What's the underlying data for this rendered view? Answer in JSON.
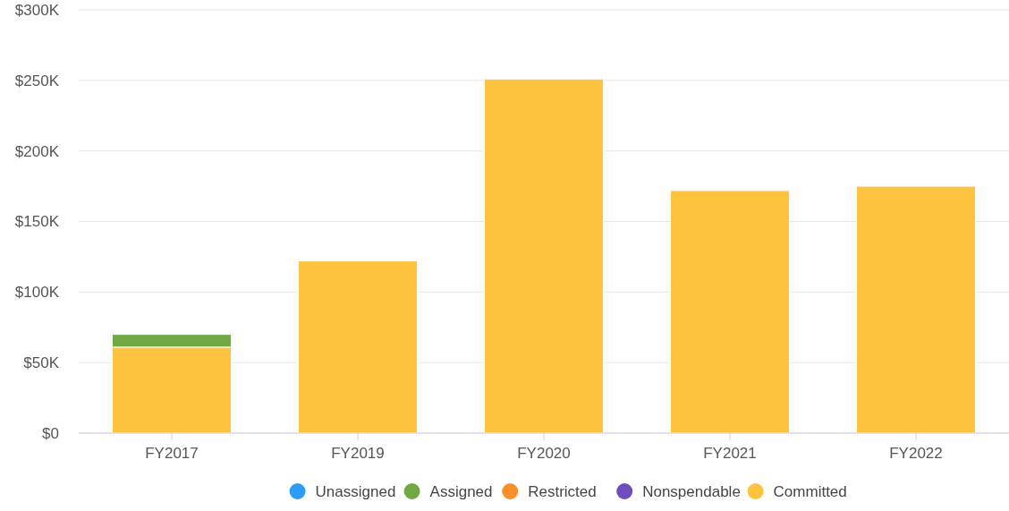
{
  "chart_data": {
    "type": "bar",
    "stacked": true,
    "categories": [
      "FY2017",
      "FY2019",
      "FY2020",
      "FY2021",
      "FY2022"
    ],
    "series": [
      {
        "name": "Committed",
        "color": "#fdc23e",
        "values": [
          61000,
          122000,
          251000,
          172000,
          175000
        ]
      },
      {
        "name": "Nonspendable",
        "color": "#6f4cbf",
        "values": [
          null,
          null,
          null,
          null,
          null
        ]
      },
      {
        "name": "Restricted",
        "color": "#f78f2a",
        "values": [
          null,
          null,
          null,
          null,
          null
        ]
      },
      {
        "name": "Assigned",
        "color": "#70a844",
        "values": [
          9000,
          null,
          null,
          null,
          null
        ]
      },
      {
        "name": "Unassigned",
        "color": "#2d9cf6",
        "values": [
          null,
          null,
          null,
          null,
          null
        ]
      }
    ],
    "ylim": [
      0,
      300000
    ],
    "yticks": [
      {
        "value": 0,
        "label": "$0"
      },
      {
        "value": 50000,
        "label": "$50K"
      },
      {
        "value": 100000,
        "label": "$100K"
      },
      {
        "value": 150000,
        "label": "$150K"
      },
      {
        "value": 200000,
        "label": "$200K"
      },
      {
        "value": 250000,
        "label": "$250K"
      },
      {
        "value": 300000,
        "label": "$300K"
      }
    ],
    "grid": "y",
    "legend": "bottom"
  }
}
